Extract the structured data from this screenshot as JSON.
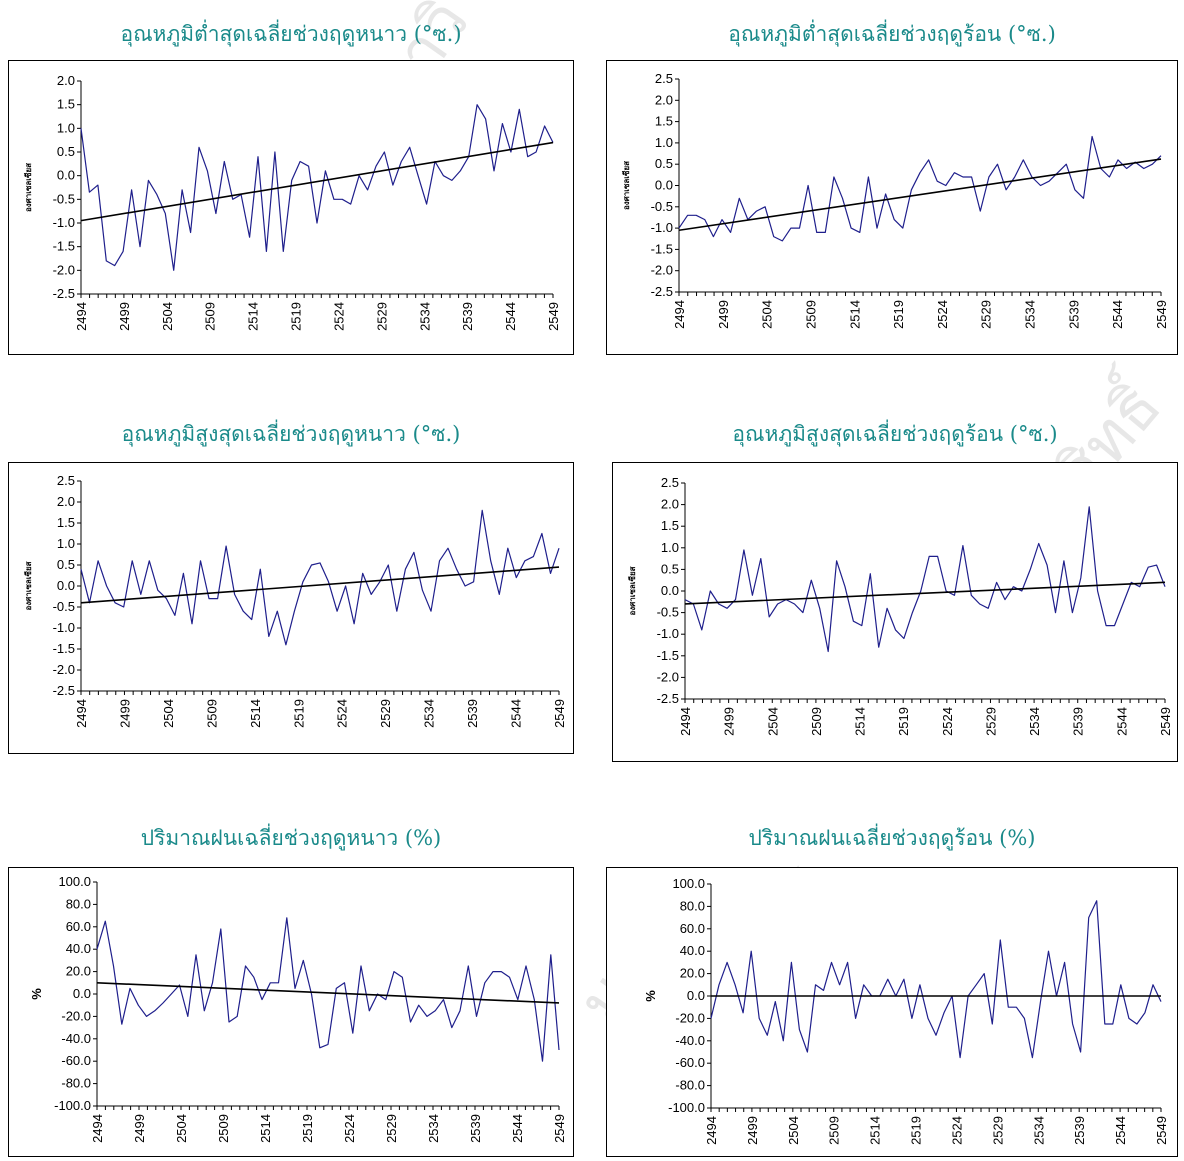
{
  "colors": {
    "title": "#1a8a8a",
    "series": "#1f1f8c",
    "trend": "#000000",
    "frame": "#000000"
  },
  "chart_data": [
    {
      "type": "line",
      "title": "อุณหภูมิต่ำสุดเฉลี่ยช่วงฤดูหนาว (°ซ.)",
      "ylabel": "องศาเซลเซียส",
      "xlabel": "",
      "ylim": [
        -2.5,
        2.0
      ],
      "yticks": [
        "2.0",
        "1.5",
        "1.0",
        "0.5",
        "0.0",
        "-0.5",
        "-1.0",
        "-1.5",
        "-2.0",
        "-2.5"
      ],
      "xticks": [
        "2494",
        "2499",
        "2504",
        "2509",
        "2514",
        "2519",
        "2524",
        "2529",
        "2534",
        "2539",
        "2544",
        "2549"
      ],
      "x_start": 2494,
      "series": [
        {
          "values": [
            1.0,
            -0.35,
            -0.2,
            -1.8,
            -1.9,
            -1.6,
            -0.3,
            -1.5,
            -0.1,
            -0.4,
            -0.8,
            -2.0,
            -0.3,
            -1.2,
            0.6,
            0.1,
            -0.8,
            0.3,
            -0.5,
            -0.4,
            -1.3,
            0.4,
            -1.6,
            0.5,
            -1.6,
            -0.1,
            0.3,
            0.2,
            -1.0,
            0.1,
            -0.5,
            -0.5,
            -0.6,
            0.0,
            -0.3,
            0.2,
            0.5,
            -0.2,
            0.3,
            0.6,
            0.0,
            -0.6,
            0.3,
            0.0,
            -0.1,
            0.1,
            0.4,
            1.5,
            1.2,
            0.1,
            1.1,
            0.5,
            1.4,
            0.4,
            0.5,
            1.05,
            0.7
          ]
        },
        {
          "trend": [
            -0.95,
            0.7
          ]
        }
      ]
    },
    {
      "type": "line",
      "title": "อุณหภูมิต่ำสุดเฉลี่ยช่วงฤดูร้อน (°ซ.)",
      "ylabel": "องศาเซลเซียส",
      "xlabel": "",
      "ylim": [
        -2.5,
        2.5
      ],
      "yticks": [
        "2.5",
        "2.0",
        "1.5",
        "1.0",
        "0.5",
        "0.0",
        "-0.5",
        "-1.0",
        "-1.5",
        "-2.0",
        "-2.5"
      ],
      "xticks": [
        "2494",
        "2499",
        "2504",
        "2509",
        "2514",
        "2519",
        "2524",
        "2529",
        "2534",
        "2539",
        "2544",
        "2549"
      ],
      "x_start": 2494,
      "series": [
        {
          "values": [
            -1.0,
            -0.7,
            -0.7,
            -0.8,
            -1.2,
            -0.8,
            -1.1,
            -0.3,
            -0.8,
            -0.6,
            -0.5,
            -1.2,
            -1.3,
            -1.0,
            -1.0,
            -0.0,
            -1.1,
            -1.1,
            0.2,
            -0.3,
            -1.0,
            -1.1,
            0.2,
            -1.0,
            -0.2,
            -0.8,
            -1.0,
            -0.1,
            0.3,
            0.6,
            0.1,
            0.0,
            0.3,
            0.2,
            0.2,
            -0.6,
            0.2,
            0.5,
            -0.1,
            0.2,
            0.6,
            0.2,
            0.0,
            0.1,
            0.3,
            0.5,
            -0.1,
            -0.3,
            1.15,
            0.4,
            0.2,
            0.6,
            0.4,
            0.55,
            0.4,
            0.5,
            0.7
          ]
        },
        {
          "trend": [
            -1.05,
            0.62
          ]
        }
      ]
    },
    {
      "type": "line",
      "title": "อุณหภูมิสูงสุดเฉลี่ยช่วงฤดูหนาว (°ซ.)",
      "ylabel": "องศาเซลเซียส",
      "xlabel": "",
      "ylim": [
        -2.5,
        2.5
      ],
      "yticks": [
        "2.5",
        "2.0",
        "1.5",
        "1.0",
        "0.5",
        "0.0",
        "-0.5",
        "-1.0",
        "-1.5",
        "-2.0",
        "-2.5"
      ],
      "xticks": [
        "2494",
        "2499",
        "2504",
        "2509",
        "2514",
        "2519",
        "2524",
        "2529",
        "2534",
        "2539",
        "2544",
        "2549"
      ],
      "x_start": 2494,
      "series": [
        {
          "values": [
            0.4,
            -0.4,
            0.6,
            0.0,
            -0.4,
            -0.5,
            0.6,
            -0.2,
            0.6,
            -0.1,
            -0.3,
            -0.7,
            0.3,
            -0.9,
            0.6,
            -0.3,
            -0.3,
            0.95,
            -0.2,
            -0.6,
            -0.8,
            0.4,
            -1.2,
            -0.6,
            -1.4,
            -0.6,
            0.1,
            0.5,
            0.55,
            0.1,
            -0.6,
            0.0,
            -0.9,
            0.3,
            -0.2,
            0.1,
            0.5,
            -0.6,
            0.4,
            0.8,
            -0.1,
            -0.6,
            0.6,
            0.9,
            0.4,
            0.0,
            0.1,
            1.8,
            0.6,
            -0.2,
            0.9,
            0.2,
            0.6,
            0.7,
            1.25,
            0.3,
            0.9
          ]
        },
        {
          "trend": [
            -0.4,
            0.45
          ]
        }
      ]
    },
    {
      "type": "line",
      "title": "อุณหภูมิสูงสุดเฉลี่ยช่วงฤดูร้อน (°ซ.)",
      "ylabel": "องศาเซลเซียส",
      "xlabel": "",
      "ylim": [
        -2.5,
        2.5
      ],
      "yticks": [
        "2.5",
        "2.0",
        "1.5",
        "1.0",
        "0.5",
        "0.0",
        "-0.5",
        "-1.0",
        "-1.5",
        "-2.0",
        "-2.5"
      ],
      "xticks": [
        "2494",
        "2499",
        "2504",
        "2509",
        "2514",
        "2519",
        "2524",
        "2529",
        "2534",
        "2539",
        "2544",
        "2549"
      ],
      "x_start": 2494,
      "series": [
        {
          "values": [
            -0.2,
            -0.3,
            -0.9,
            0.0,
            -0.3,
            -0.4,
            -0.2,
            0.95,
            -0.1,
            0.75,
            -0.6,
            -0.3,
            -0.2,
            -0.3,
            -0.5,
            0.25,
            -0.4,
            -1.4,
            0.7,
            0.1,
            -0.7,
            -0.8,
            0.4,
            -1.3,
            -0.4,
            -0.9,
            -1.1,
            -0.5,
            0.0,
            0.8,
            0.8,
            0.0,
            -0.1,
            1.05,
            -0.1,
            -0.3,
            -0.4,
            0.2,
            -0.2,
            0.1,
            0.0,
            0.5,
            1.1,
            0.6,
            -0.5,
            0.7,
            -0.5,
            0.3,
            1.95,
            0.0,
            -0.8,
            -0.8,
            -0.3,
            0.2,
            0.1,
            0.55,
            0.6,
            0.1
          ]
        },
        {
          "trend": [
            -0.3,
            0.2
          ]
        }
      ]
    },
    {
      "type": "line",
      "title": "ปริมาณฝนเฉลี่ยช่วงฤดูหนาว (%)",
      "ylabel": "%",
      "xlabel": "",
      "ylim": [
        -100,
        100
      ],
      "yticks": [
        "100.0",
        "80.0",
        "60.0",
        "40.0",
        "20.0",
        "0.0",
        "-20.0",
        "-40.0",
        "-60.0",
        "-80.0",
        "-100.0"
      ],
      "xticks": [
        "2494",
        "2499",
        "2504",
        "2509",
        "2514",
        "2519",
        "2524",
        "2529",
        "2534",
        "2539",
        "2544",
        "2549"
      ],
      "x_start": 2494,
      "series": [
        {
          "values": [
            40,
            65,
            25,
            -27,
            5,
            -10,
            -20,
            -15,
            -8,
            0,
            8,
            -20,
            35,
            -15,
            10,
            58,
            -25,
            -20,
            25,
            15,
            -5,
            10,
            10,
            68,
            5,
            30,
            0,
            -48,
            -45,
            5,
            10,
            -35,
            25,
            -15,
            0,
            -5,
            20,
            15,
            -25,
            -10,
            -20,
            -15,
            -5,
            -30,
            -15,
            25,
            -20,
            10,
            20,
            20,
            15,
            -5,
            25,
            -5,
            -60,
            35,
            -50
          ]
        },
        {
          "trend": [
            10,
            -8
          ]
        }
      ]
    },
    {
      "type": "line",
      "title": "ปริมาณฝนเฉลี่ยช่วงฤดูร้อน (%)",
      "ylabel": "%",
      "xlabel": "",
      "ylim": [
        -100,
        100
      ],
      "yticks": [
        "100.0",
        "80.0",
        "60.0",
        "40.0",
        "20.0",
        "0.0",
        "-20.0",
        "-40.0",
        "-60.0",
        "-80.0",
        "-100.0"
      ],
      "xticks": [
        "2494",
        "2499",
        "2504",
        "2509",
        "2514",
        "2519",
        "2524",
        "2529",
        "2534",
        "2539",
        "2544",
        "2549"
      ],
      "x_start": 2494,
      "series": [
        {
          "values": [
            -20,
            10,
            30,
            10,
            -15,
            40,
            -20,
            -35,
            -5,
            -40,
            30,
            -30,
            -50,
            10,
            5,
            30,
            10,
            30,
            -20,
            10,
            0,
            0,
            15,
            0,
            15,
            -20,
            10,
            -20,
            -35,
            -15,
            0,
            -55,
            0,
            10,
            20,
            -25,
            50,
            -10,
            -10,
            -20,
            -55,
            -5,
            40,
            0,
            30,
            -25,
            -50,
            70,
            85,
            -25,
            -25,
            10,
            -20,
            -25,
            -15,
            10,
            -5
          ]
        },
        {
          "trend": [
            0,
            0
          ]
        }
      ]
    }
  ],
  "watermarks": [
    "มหาวิทยาลัย",
    "สงวนลิขสิทธิ์",
    "มหาวิทยาลัย",
    "ศูนย์"
  ]
}
